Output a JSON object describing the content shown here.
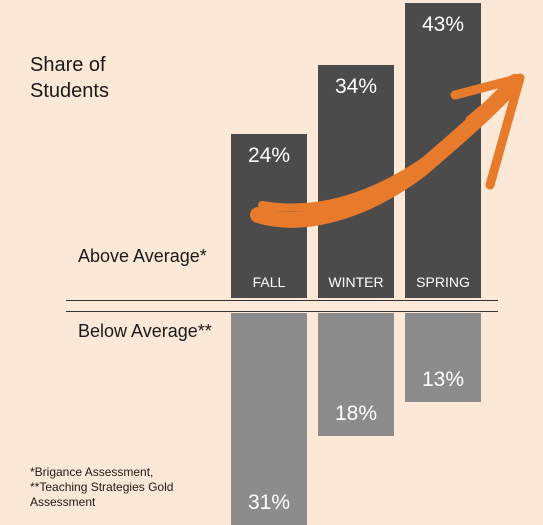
{
  "chart_data": {
    "type": "diverging-bar",
    "title": "Share of Students",
    "categories": [
      "FALL",
      "WINTER",
      "SPRING"
    ],
    "series": [
      {
        "name": "Above Average*",
        "color": "#4b4b4b",
        "values": [
          24,
          34,
          43
        ],
        "value_labels": [
          "24%",
          "34%",
          "43%"
        ]
      },
      {
        "name": "Below Average**",
        "color": "#8c8c8c",
        "values": [
          31,
          18,
          13
        ],
        "value_labels": [
          "31%",
          "18%",
          "13%"
        ]
      }
    ],
    "notes": [
      "*Brigance Assessment,",
      "**Teaching Strategies Gold Assessment"
    ]
  }
}
